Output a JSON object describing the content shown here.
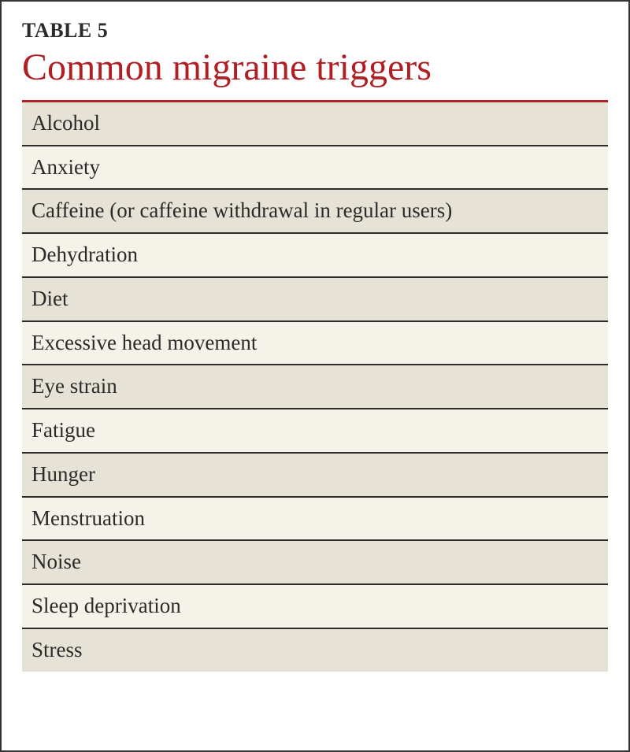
{
  "table": {
    "label": "TABLE 5",
    "title": "Common migraine triggers",
    "label_color": "#2b2b2b",
    "label_fontsize": 26,
    "title_color": "#b01f24",
    "title_fontsize": 48,
    "title_rule_color": "#b01f24",
    "row_text_color": "#2b2b2b",
    "row_fontsize": 27,
    "row_border_color": "#2b2b2b",
    "row_border_width": 2,
    "row_colors": [
      "#e6e3d6",
      "#f4f2e9"
    ],
    "rows": [
      "Alcohol",
      "Anxiety",
      "Caffeine (or caffeine withdrawal in regular users)",
      "Dehydration",
      "Diet",
      "Excessive head movement",
      "Eye strain",
      "Fatigue",
      "Hunger",
      "Menstruation",
      "Noise",
      "Sleep deprivation",
      "Stress"
    ]
  }
}
